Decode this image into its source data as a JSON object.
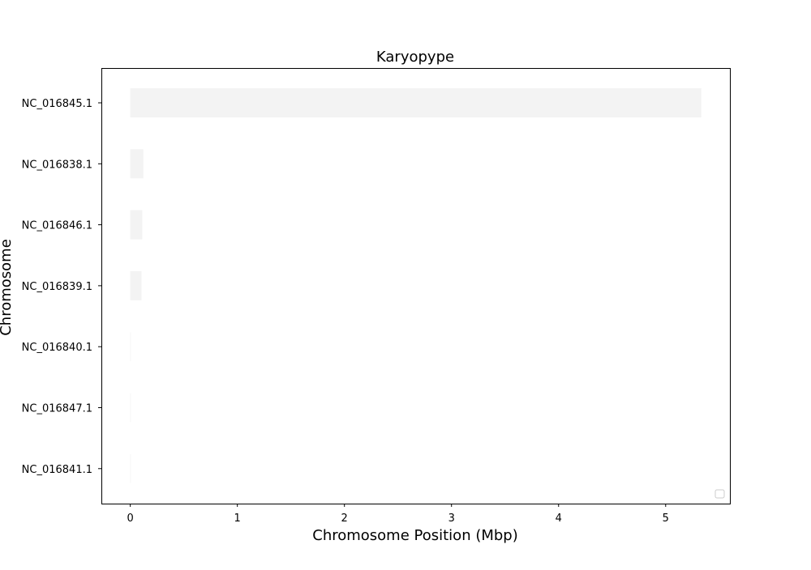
{
  "chart_data": {
    "type": "bar",
    "orientation": "horizontal",
    "title": "Karyopype",
    "xlabel": "Chromosome Position (Mbp)",
    "ylabel": "Chromosome",
    "categories": [
      "NC_016845.1",
      "NC_016838.1",
      "NC_016846.1",
      "NC_016839.1",
      "NC_016840.1",
      "NC_016847.1",
      "NC_016841.1"
    ],
    "values": [
      5.333,
      0.122,
      0.112,
      0.105,
      0.004,
      0.003,
      0.001
    ],
    "xlim": [
      -0.27,
      5.6
    ],
    "xticks": [
      0,
      1,
      2,
      3,
      4,
      5
    ],
    "bar_color": "#f3f3f3",
    "grid": false,
    "legend_position": "lower right",
    "legend_entries": []
  }
}
